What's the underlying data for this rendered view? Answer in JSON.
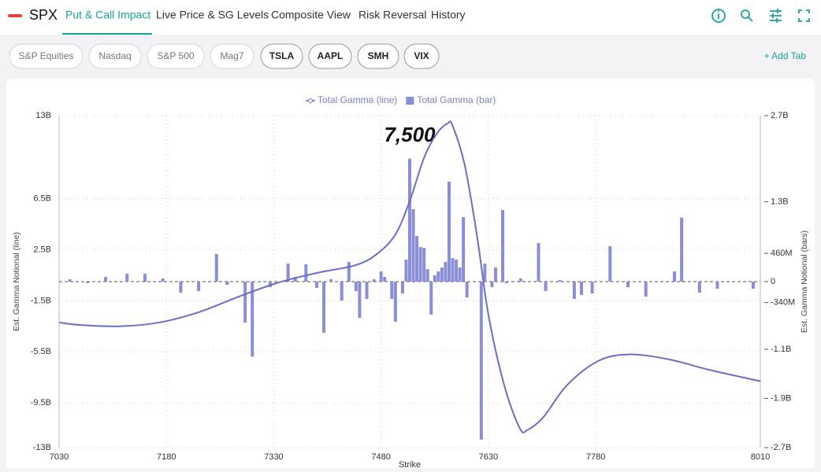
{
  "header": {
    "symbol": "SPX",
    "tabs": [
      "Put & Call Impact",
      "Live Price & SG Levels",
      "Composite View",
      "Risk Reversal",
      "History"
    ]
  },
  "chips": [
    "S&P Equities",
    "Nasdaq",
    "S&P 500",
    "Mag7",
    "TSLA",
    "AAPL",
    "SMH",
    "VIX"
  ],
  "add_tab": "+ Add Tab",
  "chart_data": {
    "type": "combo",
    "legend": "top",
    "grid": true,
    "annotation": "7,500",
    "xlabel": "Strike",
    "ylabel": "Est. Gamma Notional (line)",
    "y2label": "Est. Gamma Notional (bars)",
    "xlim": [
      7030,
      8010
    ],
    "xticks": [
      7030,
      7180,
      7330,
      7480,
      7630,
      7780,
      8010
    ],
    "ylim": [
      -13000000000,
      13000000000
    ],
    "yticks": [
      {
        "value": 13000000000,
        "label": "13B"
      },
      {
        "value": 6500000000,
        "label": "6.5B"
      },
      {
        "value": 2500000000,
        "label": "2.5B"
      },
      {
        "value": -1500000000,
        "label": "-1.5B"
      },
      {
        "value": -5500000000,
        "label": "-5.5B"
      },
      {
        "value": -9500000000,
        "label": "-9.5B"
      },
      {
        "value": -13000000000,
        "label": "-13B"
      }
    ],
    "y2lim": [
      -2700000000,
      2700000000
    ],
    "y2ticks": [
      {
        "value": 2700000000,
        "label": "2.7B"
      },
      {
        "value": 1300000000,
        "label": "1.3B"
      },
      {
        "value": 460000000,
        "label": "460M"
      },
      0,
      {
        "value": -340000000,
        "label": "-340M"
      },
      {
        "value": -1100000000,
        "label": "-1.1B"
      },
      {
        "value": -1900000000,
        "label": "-1.9B"
      },
      {
        "value": -2700000000,
        "label": "-2.7B"
      }
    ],
    "series": [
      {
        "name": "Total Gamma (line)",
        "type": "line",
        "color": "#6a6ec6",
        "x": [
          7030,
          7060,
          7115,
          7170,
          7225,
          7280,
          7335,
          7390,
          7445,
          7475,
          7500,
          7520,
          7540,
          7558,
          7573,
          7580,
          7597,
          7614,
          7630,
          7652,
          7674,
          7685,
          7707,
          7740,
          7784,
          7828,
          7883,
          7938,
          8010
        ],
        "values": [
          -3200000000,
          -3400000000,
          -3500000000,
          -3200000000,
          -2400000000,
          -1200000000,
          -100000000,
          680000000,
          1300000000,
          2200000000,
          3700000000,
          6300000000,
          9700000000,
          11600000000,
          12400000000,
          12200000000,
          9100000000,
          3600000000,
          -2600000000,
          -8100000000,
          -11500000000,
          -11600000000,
          -10600000000,
          -8100000000,
          -6200000000,
          -5700000000,
          -6100000000,
          -6900000000,
          -7800000000
        ]
      },
      {
        "name": "Total Gamma (bar)",
        "type": "bar",
        "axis": "y2",
        "color": "#8a8ed6",
        "x": [
          7045,
          7070,
          7095,
          7125,
          7150,
          7175,
          7200,
          7225,
          7250,
          7265,
          7290,
          7300,
          7325,
          7350,
          7360,
          7375,
          7390,
          7400,
          7410,
          7425,
          7435,
          7445,
          7450,
          7460,
          7470,
          7480,
          7485,
          7495,
          7500,
          7510,
          7515,
          7520,
          7525,
          7530,
          7535,
          7540,
          7545,
          7550,
          7555,
          7560,
          7565,
          7570,
          7575,
          7580,
          7585,
          7590,
          7595,
          7600,
          7620,
          7625,
          7635,
          7640,
          7650,
          7655,
          7675,
          7700,
          7710,
          7730,
          7750,
          7760,
          7775,
          7800,
          7825,
          7850,
          7890,
          7900,
          7925,
          7950,
          8000
        ],
        "values": [
          38000000,
          -26000000,
          77000000,
          128000000,
          128000000,
          51000000,
          -179000000,
          -154000000,
          448000000,
          -51000000,
          -666000000,
          -1220000000,
          -90000000,
          294000000,
          77000000,
          282000000,
          -102000000,
          -832000000,
          38000000,
          -307000000,
          320000000,
          -154000000,
          -589000000,
          -282000000,
          38000000,
          166000000,
          77000000,
          -282000000,
          -653000000,
          -192000000,
          358000000,
          2000000000,
          1178000000,
          742000000,
          563000000,
          550000000,
          205000000,
          -538000000,
          102000000,
          166000000,
          230000000,
          320000000,
          1626000000,
          384000000,
          358000000,
          230000000,
          1050000000,
          -256000000,
          -2570000000,
          294000000,
          -90000000,
          230000000,
          1165000000,
          -26000000,
          51000000,
          627000000,
          -154000000,
          26000000,
          -282000000,
          -218000000,
          -192000000,
          576000000,
          -90000000,
          -243000000,
          166000000,
          1040000000,
          -179000000,
          -115000000,
          -115000000
        ]
      }
    ]
  }
}
